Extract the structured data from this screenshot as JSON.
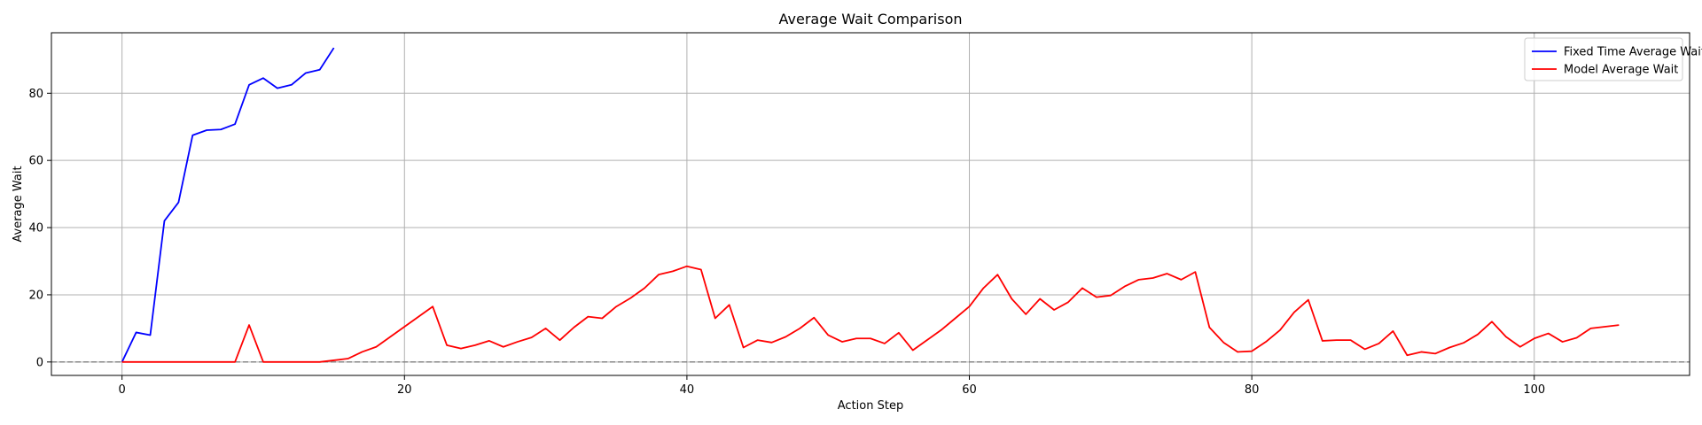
{
  "chart_data": {
    "type": "line",
    "title": "Average Wait Comparison",
    "xlabel": "Action Step",
    "ylabel": "Average Wait",
    "xlim": [
      -5,
      111
    ],
    "ylim": [
      -4,
      98
    ],
    "xticks": [
      0,
      20,
      40,
      60,
      80,
      100
    ],
    "yticks": [
      0,
      20,
      40,
      60,
      80
    ],
    "grid": true,
    "legend_position": "top-right",
    "reference_line": {
      "y": 0,
      "style": "dashed",
      "color": "#808080"
    },
    "series": [
      {
        "name": "Fixed Time Average Wait",
        "color": "#0000ff",
        "x": [
          0,
          1,
          2,
          3,
          4,
          5,
          6,
          7,
          8,
          9,
          10,
          11,
          12,
          13,
          14,
          15
        ],
        "values": [
          0,
          8.8,
          8,
          42,
          47.5,
          67.5,
          69,
          69.2,
          70.8,
          82.5,
          84.5,
          81.5,
          82.5,
          86,
          87,
          93.5
        ]
      },
      {
        "name": "Model Average Wait",
        "color": "#ff0000",
        "x": [
          0,
          1,
          2,
          3,
          4,
          5,
          6,
          7,
          8,
          9,
          10,
          11,
          12,
          13,
          14,
          15,
          16,
          17,
          18,
          19,
          20,
          21,
          22,
          23,
          24,
          25,
          26,
          27,
          28,
          29,
          30,
          31,
          32,
          33,
          34,
          35,
          36,
          37,
          38,
          39,
          40,
          41,
          42,
          43,
          44,
          45,
          46,
          47,
          48,
          49,
          50,
          51,
          52,
          53,
          54,
          55,
          56,
          57,
          58,
          59,
          60,
          61,
          62,
          63,
          64,
          65,
          66,
          67,
          68,
          69,
          70,
          71,
          72,
          73,
          74,
          75,
          76,
          77,
          78,
          79,
          80,
          81,
          82,
          83,
          84,
          85,
          86,
          87,
          88,
          89,
          90,
          91,
          92,
          93,
          94,
          95,
          96,
          97,
          98,
          99,
          100,
          101,
          102,
          103,
          104,
          105,
          106
        ],
        "values": [
          0,
          0,
          0,
          0,
          0,
          0,
          0,
          0,
          0,
          11,
          0,
          0,
          0,
          0,
          0,
          0.5,
          1,
          3,
          4.5,
          7.5,
          10.5,
          13.5,
          16.5,
          5,
          4,
          5,
          6.3,
          4.5,
          6,
          7.3,
          10,
          6.5,
          10.3,
          13.5,
          13,
          16.5,
          19,
          22,
          26,
          27,
          28.5,
          27.5,
          13,
          17,
          4.3,
          6.5,
          5.8,
          7.5,
          10,
          13.2,
          8,
          6,
          7,
          7,
          5.5,
          8.7,
          3.5,
          6.5,
          9.5,
          13,
          16.5,
          22,
          26,
          18.8,
          14.2,
          18.8,
          15.5,
          17.8,
          22,
          19.3,
          19.8,
          22.5,
          24.5,
          25,
          26.3,
          24.5,
          26.8,
          10.3,
          5.8,
          3,
          3.2,
          6,
          9.5,
          14.8,
          18.5,
          6.3,
          6.5,
          6.5,
          3.8,
          5.5,
          9.2,
          2,
          3,
          2.5,
          4.3,
          5.7,
          8.2,
          12,
          7.5,
          4.5,
          7,
          8.5,
          6,
          7.2,
          10,
          10.5,
          11
        ]
      }
    ]
  }
}
